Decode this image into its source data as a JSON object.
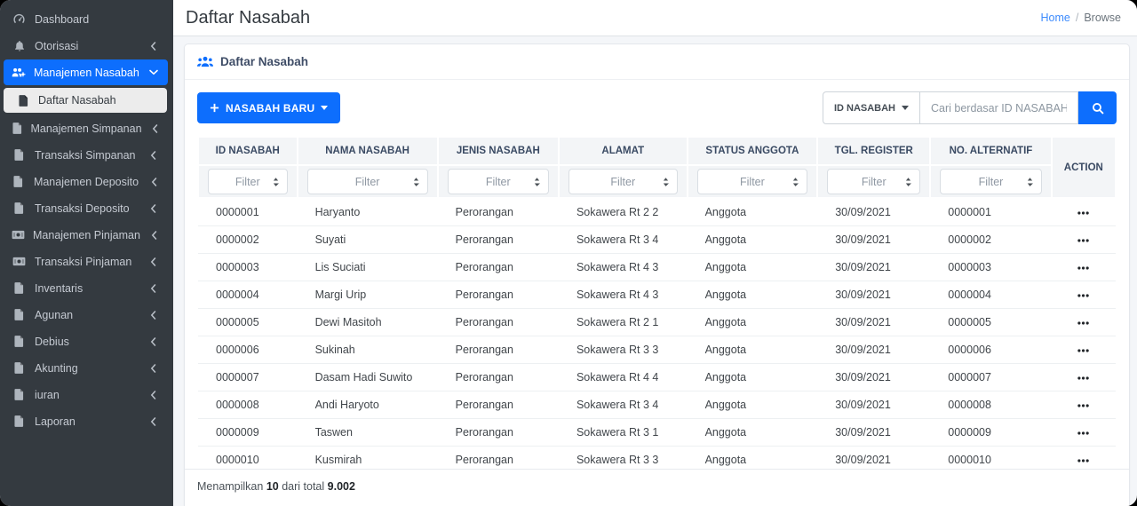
{
  "sidebar": {
    "items": [
      {
        "label": "Dashboard",
        "icon": "gauge-icon",
        "chevron": null,
        "active": false
      },
      {
        "label": "Otorisasi",
        "icon": "bell-icon",
        "chevron": "left",
        "active": false
      },
      {
        "label": "Manajemen Nasabah",
        "icon": "users-gear-icon",
        "chevron": "down",
        "active": true,
        "children": [
          {
            "label": "Daftar Nasabah",
            "icon": "file-icon",
            "active": true
          }
        ]
      },
      {
        "label": "Manajemen Simpanan",
        "icon": "file-icon",
        "chevron": "left",
        "active": false
      },
      {
        "label": "Transaksi Simpanan",
        "icon": "file-icon",
        "chevron": "left",
        "active": false
      },
      {
        "label": "Manajemen Deposito",
        "icon": "file-icon",
        "chevron": "left",
        "active": false
      },
      {
        "label": "Transaksi Deposito",
        "icon": "file-icon",
        "chevron": "left",
        "active": false
      },
      {
        "label": "Manajemen Pinjaman",
        "icon": "money-icon",
        "chevron": "left",
        "active": false
      },
      {
        "label": "Transaksi Pinjaman",
        "icon": "money-icon",
        "chevron": "left",
        "active": false
      },
      {
        "label": "Inventaris",
        "icon": "file-icon",
        "chevron": "left",
        "active": false
      },
      {
        "label": "Agunan",
        "icon": "file-icon",
        "chevron": "left",
        "active": false
      },
      {
        "label": "Debius",
        "icon": "file-icon",
        "chevron": "left",
        "active": false
      },
      {
        "label": "Akunting",
        "icon": "file-icon",
        "chevron": "left",
        "active": false
      },
      {
        "label": "iuran",
        "icon": "file-icon",
        "chevron": "left",
        "active": false
      },
      {
        "label": "Laporan",
        "icon": "file-icon",
        "chevron": "left",
        "active": false
      }
    ]
  },
  "header": {
    "title": "Daftar Nasabah",
    "breadcrumb": {
      "home": "Home",
      "separator": "/",
      "current": "Browse"
    }
  },
  "card": {
    "title": "Daftar Nasabah"
  },
  "toolbar": {
    "new_button_label": "NASABAH BARU",
    "search": {
      "field": "ID NASABAH",
      "placeholder": "Cari berdasar ID NASABAH"
    }
  },
  "table": {
    "columns": [
      "ID NASABAH",
      "NAMA NASABAH",
      "JENIS NASABAH",
      "ALAMAT",
      "STATUS ANGGOTA",
      "TGL. REGISTER",
      "NO. ALTERNATIF"
    ],
    "action_label": "ACTION",
    "filter_placeholder": "Filter",
    "rows": [
      [
        "0000001",
        "Haryanto",
        "Perorangan",
        "Sokawera Rt 2 2",
        "Anggota",
        "30/09/2021",
        "0000001"
      ],
      [
        "0000002",
        "Suyati",
        "Perorangan",
        "Sokawera Rt 3 4",
        "Anggota",
        "30/09/2021",
        "0000002"
      ],
      [
        "0000003",
        "Lis Suciati",
        "Perorangan",
        "Sokawera Rt 4 3",
        "Anggota",
        "30/09/2021",
        "0000003"
      ],
      [
        "0000004",
        "Margi Urip",
        "Perorangan",
        "Sokawera Rt 4 3",
        "Anggota",
        "30/09/2021",
        "0000004"
      ],
      [
        "0000005",
        "Dewi Masitoh",
        "Perorangan",
        "Sokawera Rt 2 1",
        "Anggota",
        "30/09/2021",
        "0000005"
      ],
      [
        "0000006",
        "Sukinah",
        "Perorangan",
        "Sokawera Rt 3 3",
        "Anggota",
        "30/09/2021",
        "0000006"
      ],
      [
        "0000007",
        "Dasam Hadi Suwito",
        "Perorangan",
        "Sokawera Rt 4 4",
        "Anggota",
        "30/09/2021",
        "0000007"
      ],
      [
        "0000008",
        "Andi Haryoto",
        "Perorangan",
        "Sokawera Rt 3 4",
        "Anggota",
        "30/09/2021",
        "0000008"
      ],
      [
        "0000009",
        "Taswen",
        "Perorangan",
        "Sokawera Rt 3 1",
        "Anggota",
        "30/09/2021",
        "0000009"
      ],
      [
        "0000010",
        "Kusmirah",
        "Perorangan",
        "Sokawera Rt 3 3",
        "Anggota",
        "30/09/2021",
        "0000010"
      ]
    ],
    "footer": {
      "prefix": "Menampilkan",
      "count": "10",
      "middle": "dari total",
      "total": "9.002"
    }
  },
  "icons": {
    "gauge-icon": "speedometer",
    "bell-icon": "bell",
    "users-gear-icon": "people-with-gear",
    "file-icon": "document",
    "money-icon": "banknote",
    "users-icon": "three-people",
    "search-icon": "magnifier",
    "plus-icon": "plus",
    "caret-down-icon": "filled-triangle-down",
    "chevron-left-icon": "angle-left",
    "chevron-down-icon": "angle-down",
    "sort-icon": "up-down-triangles",
    "ellipsis-icon": "three-dots"
  },
  "colors": {
    "accent": "#0d6efd",
    "sidebar-bg": "#343a40",
    "sidebar-text": "#c5cad2",
    "content-bg": "#f4f6f9",
    "header-cell-bg": "#f3f5f7",
    "link": "#3d8bfd"
  }
}
